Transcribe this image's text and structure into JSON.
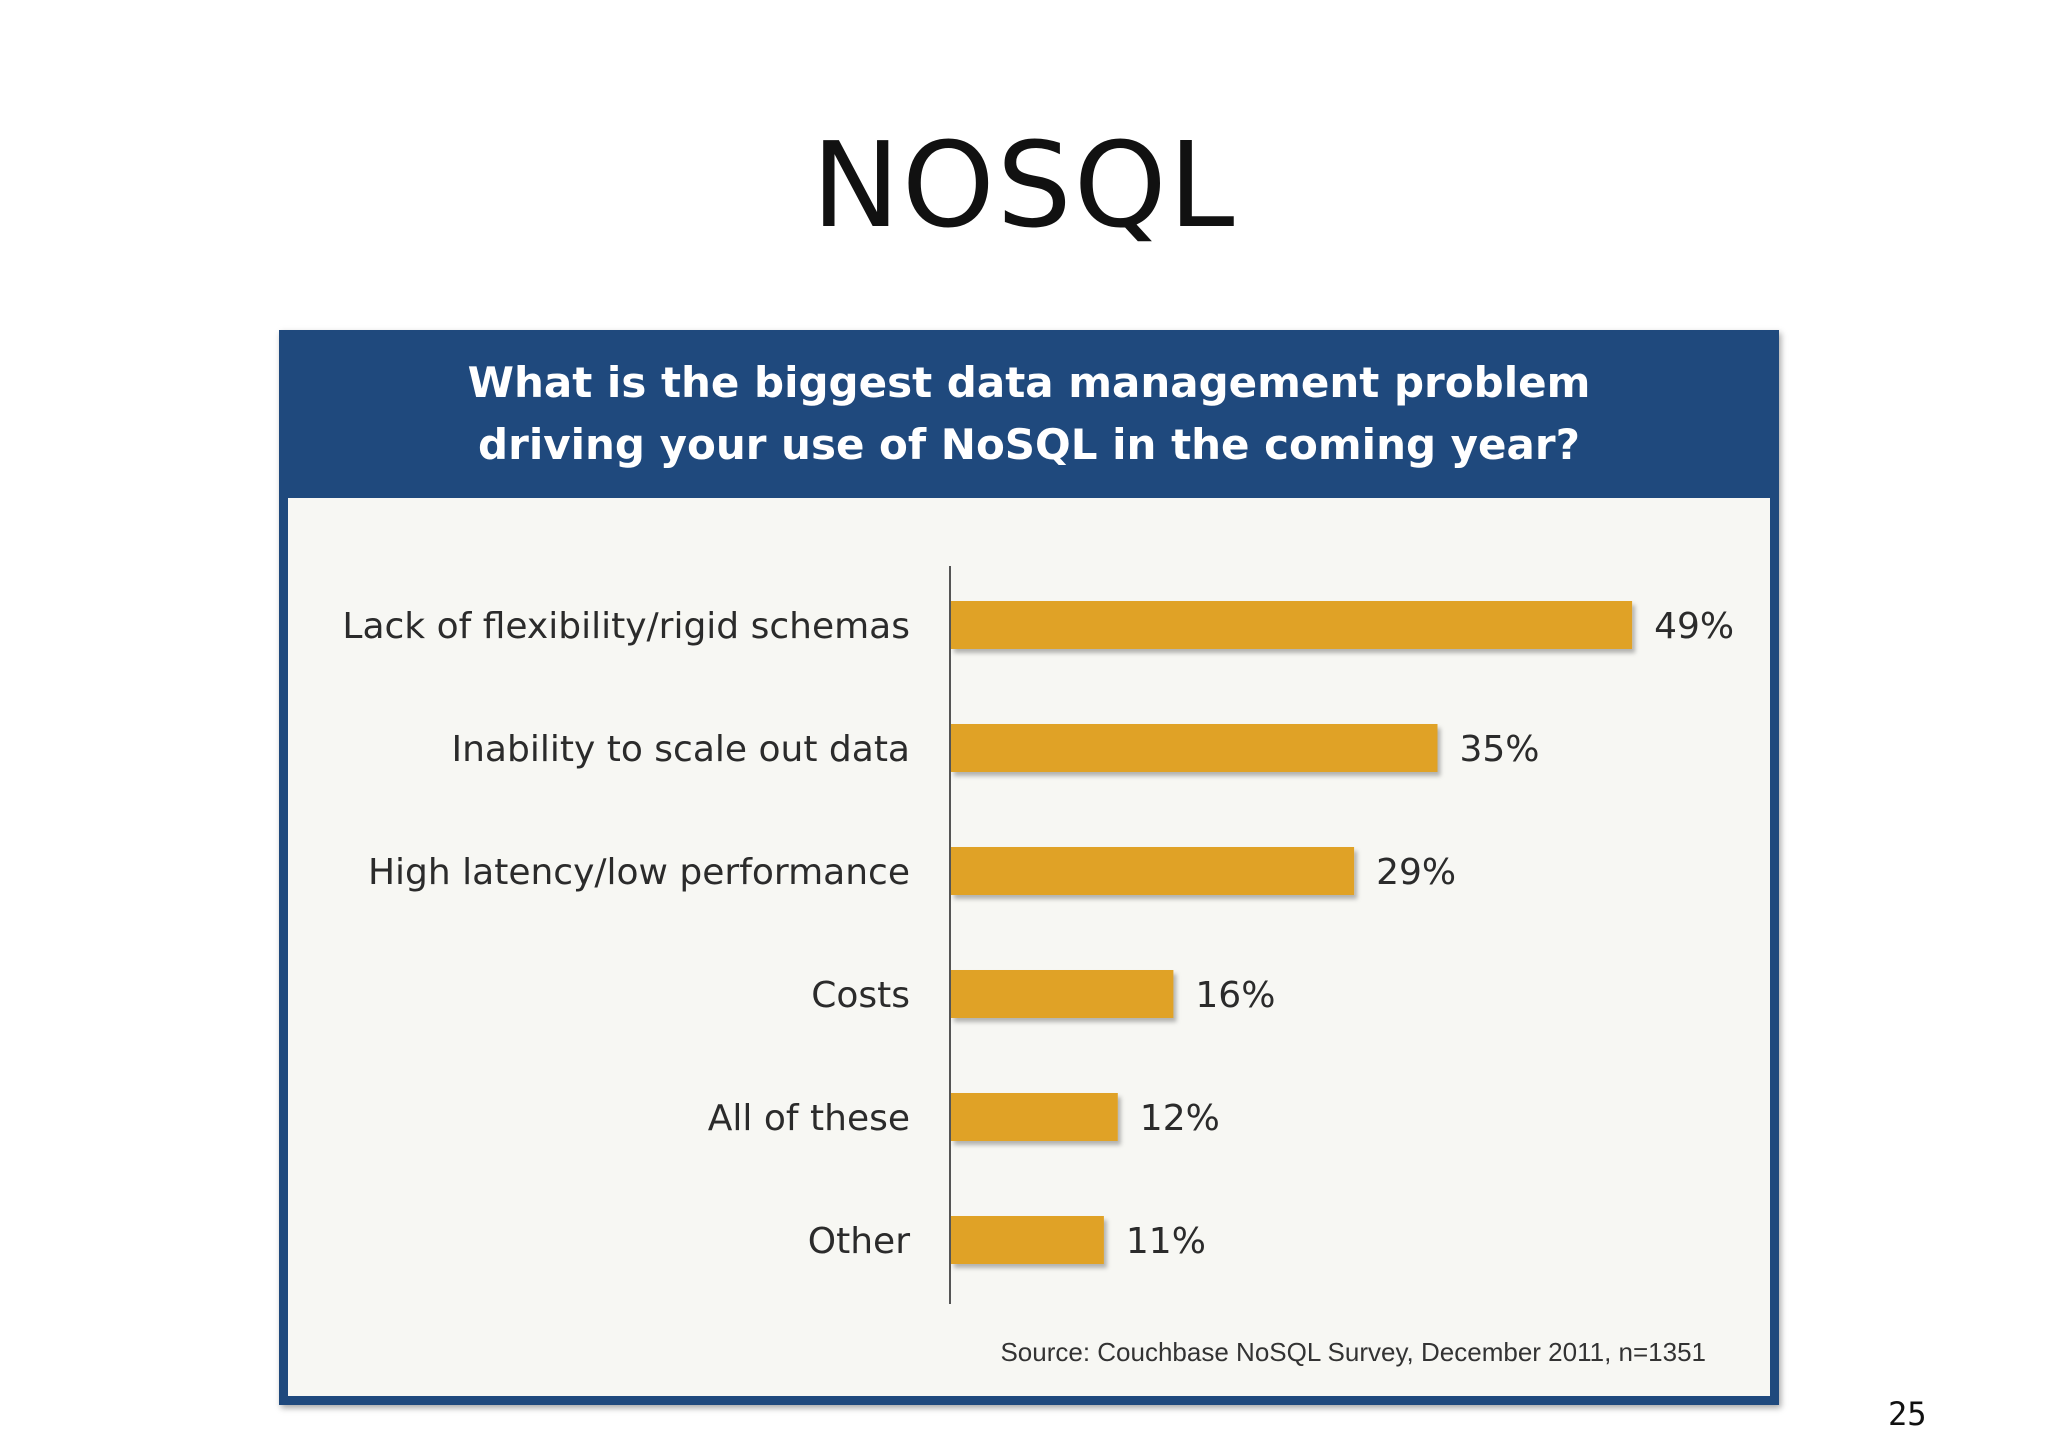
{
  "slide": {
    "title": "NOSQL",
    "page_number": "25"
  },
  "colors": {
    "header_background": "#1f497d",
    "plot_background": "#f7f7f3",
    "bar": "#e0a225",
    "axis": "#555555"
  },
  "chart_data": {
    "type": "bar",
    "orientation": "horizontal",
    "title": [
      "What is the biggest data management problem",
      "driving your use of NoSQL in the coming year?"
    ],
    "categories": [
      "Lack of flexibility/rigid schemas",
      "Inability to scale out data",
      "High latency/low performance",
      "Costs",
      "All of these",
      "Other"
    ],
    "values": [
      49,
      35,
      29,
      16,
      12,
      11
    ],
    "value_labels": [
      "49%",
      "35%",
      "29%",
      "16%",
      "12%",
      "11%"
    ],
    "unit": "%",
    "xlim": [
      0,
      50
    ],
    "grid": false,
    "source": "Source: Couchbase NoSQL Survey, December 2011, n=1351"
  }
}
